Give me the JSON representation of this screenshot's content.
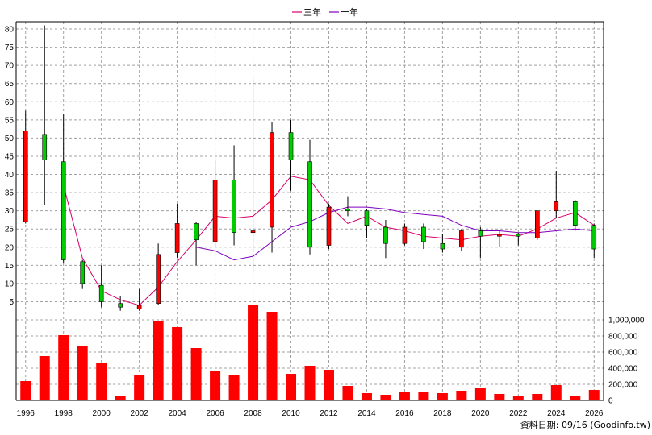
{
  "chart_data": {
    "type": "candlestick",
    "source_label": "資料日期: 09/16 (Goodinfo.tw)",
    "legend": {
      "placement": "top-center",
      "items": [
        {
          "name": "三年",
          "color": "#d8006c"
        },
        {
          "name": "十年",
          "color": "#8000c0"
        }
      ]
    },
    "colors": {
      "up": "#ff0000",
      "down": "#00cc00",
      "volume": "#ff0000"
    },
    "grid": true,
    "x_axis": {
      "min": 1995.5,
      "max": 2026.5,
      "tick_labels": [
        "1996",
        "1998",
        "2000",
        "2002",
        "2004",
        "2006",
        "2008",
        "2010",
        "2012",
        "2014",
        "2016",
        "2018",
        "2020",
        "2022",
        "2024",
        "2026"
      ]
    },
    "price_axis": {
      "range": [
        2,
        82
      ],
      "tick_labels": [
        "5",
        "10",
        "15",
        "20",
        "25",
        "30",
        "35",
        "40",
        "45",
        "50",
        "55",
        "60",
        "65",
        "70",
        "75",
        "80"
      ]
    },
    "volume_axis": {
      "range": [
        0,
        1200000
      ],
      "tick_labels": [
        "0",
        "200,000",
        "400,000",
        "600,000",
        "800,000",
        "1,000,000"
      ]
    },
    "candles": [
      {
        "year": 1996,
        "open": 27,
        "high": 57.5,
        "low": 26.5,
        "close": 52
      },
      {
        "year": 1997,
        "open": 51,
        "high": 81,
        "low": 31.5,
        "close": 44
      },
      {
        "year": 1998,
        "open": 43.5,
        "high": 56.5,
        "low": 15.5,
        "close": 16.5
      },
      {
        "year": 1999,
        "open": 16,
        "high": 16.5,
        "low": 8.5,
        "close": 10
      },
      {
        "year": 2000,
        "open": 9.5,
        "high": 15,
        "low": 3.5,
        "close": 5
      },
      {
        "year": 2001,
        "open": 4.5,
        "high": 6.5,
        "low": 2.5,
        "close": 3.5
      },
      {
        "year": 2002,
        "open": 3,
        "high": 8.5,
        "low": 2.5,
        "close": 4
      },
      {
        "year": 2003,
        "open": 4.5,
        "high": 21,
        "low": 4,
        "close": 18
      },
      {
        "year": 2004,
        "open": 18.5,
        "high": 32,
        "low": 17,
        "close": 26.5
      },
      {
        "year": 2005,
        "open": 26.5,
        "high": 27,
        "low": 15,
        "close": 22
      },
      {
        "year": 2006,
        "open": 21.5,
        "high": 44,
        "low": 20,
        "close": 38.5
      },
      {
        "year": 2007,
        "open": 38.5,
        "high": 48,
        "low": 20.5,
        "close": 24
      },
      {
        "year": 2008,
        "open": 24,
        "high": 66.5,
        "low": 13,
        "close": 24.5
      },
      {
        "year": 2009,
        "open": 25.5,
        "high": 54.5,
        "low": 18.5,
        "close": 51.5
      },
      {
        "year": 2010,
        "open": 51.5,
        "high": 55,
        "low": 35.5,
        "close": 44
      },
      {
        "year": 2011,
        "open": 43.5,
        "high": 49.5,
        "low": 18,
        "close": 20
      },
      {
        "year": 2012,
        "open": 20.5,
        "high": 32,
        "low": 19.5,
        "close": 31
      },
      {
        "year": 2013,
        "open": 30.5,
        "high": 34,
        "low": 28.5,
        "close": 30
      },
      {
        "year": 2014,
        "open": 30,
        "high": 30.5,
        "low": 22.5,
        "close": 26
      },
      {
        "year": 2015,
        "open": 25.5,
        "high": 27.5,
        "low": 17,
        "close": 21
      },
      {
        "year": 2016,
        "open": 21,
        "high": 26.5,
        "low": 20.5,
        "close": 25.5
      },
      {
        "year": 2017,
        "open": 25.5,
        "high": 26.5,
        "low": 19.5,
        "close": 21.5
      },
      {
        "year": 2018,
        "open": 21,
        "high": 23.5,
        "low": 18.5,
        "close": 19.5
      },
      {
        "year": 2019,
        "open": 20,
        "high": 25,
        "low": 19,
        "close": 24.5
      },
      {
        "year": 2020,
        "open": 24.5,
        "high": 25.5,
        "low": 17,
        "close": 23
      },
      {
        "year": 2021,
        "open": 23,
        "high": 24.5,
        "low": 20,
        "close": 23.5
      },
      {
        "year": 2022,
        "open": 23.5,
        "high": 24,
        "low": 20.5,
        "close": 23
      },
      {
        "year": 2023,
        "open": 22.5,
        "high": 30,
        "low": 22,
        "close": 30
      },
      {
        "year": 2024,
        "open": 30,
        "high": 41,
        "low": 28,
        "close": 32.5
      },
      {
        "year": 2025,
        "open": 32.5,
        "high": 33,
        "low": 24.5,
        "close": 26
      },
      {
        "year": 2026,
        "open": 26,
        "high": 26.5,
        "low": 17,
        "close": 19.5
      }
    ],
    "moving_averages": [
      {
        "name": "三年",
        "color": "#d8006c",
        "points": [
          [
            1998,
            37
          ],
          [
            1999,
            17
          ],
          [
            2000,
            8
          ],
          [
            2001,
            5.5
          ],
          [
            2002,
            4
          ],
          [
            2003,
            9
          ],
          [
            2004,
            16
          ],
          [
            2005,
            22
          ],
          [
            2006,
            28.5
          ],
          [
            2007,
            28
          ],
          [
            2008,
            28.5
          ],
          [
            2009,
            33
          ],
          [
            2010,
            39.5
          ],
          [
            2011,
            38.5
          ],
          [
            2012,
            31.5
          ],
          [
            2013,
            26.5
          ],
          [
            2014,
            28.5
          ],
          [
            2015,
            25.5
          ],
          [
            2016,
            24.5
          ],
          [
            2017,
            23
          ],
          [
            2018,
            22.5
          ],
          [
            2019,
            22
          ],
          [
            2020,
            23
          ],
          [
            2021,
            23.5
          ],
          [
            2022,
            23
          ],
          [
            2023,
            25
          ],
          [
            2024,
            28
          ],
          [
            2025,
            29.5
          ],
          [
            2026,
            26
          ]
        ]
      },
      {
        "name": "十年",
        "color": "#8000c0",
        "points": [
          [
            2005,
            20
          ],
          [
            2006,
            19
          ],
          [
            2007,
            16.5
          ],
          [
            2008,
            17.5
          ],
          [
            2009,
            21.5
          ],
          [
            2010,
            25.5
          ],
          [
            2011,
            27
          ],
          [
            2012,
            29.5
          ],
          [
            2013,
            31
          ],
          [
            2014,
            31
          ],
          [
            2015,
            30.5
          ],
          [
            2016,
            29.5
          ],
          [
            2017,
            29
          ],
          [
            2018,
            28.5
          ],
          [
            2019,
            26
          ],
          [
            2020,
            24.5
          ],
          [
            2021,
            24.5
          ],
          [
            2022,
            24
          ],
          [
            2023,
            24
          ],
          [
            2024,
            24.5
          ],
          [
            2025,
            25
          ],
          [
            2026,
            24.5
          ]
        ]
      }
    ],
    "volume": [
      {
        "year": 1996,
        "value": 240000
      },
      {
        "year": 1997,
        "value": 550000
      },
      {
        "year": 1998,
        "value": 810000
      },
      {
        "year": 1999,
        "value": 680000
      },
      {
        "year": 2000,
        "value": 460000
      },
      {
        "year": 2001,
        "value": 50000
      },
      {
        "year": 2002,
        "value": 320000
      },
      {
        "year": 2003,
        "value": 980000
      },
      {
        "year": 2004,
        "value": 910000
      },
      {
        "year": 2005,
        "value": 650000
      },
      {
        "year": 2006,
        "value": 360000
      },
      {
        "year": 2007,
        "value": 320000
      },
      {
        "year": 2008,
        "value": 1180000
      },
      {
        "year": 2009,
        "value": 1100000
      },
      {
        "year": 2010,
        "value": 330000
      },
      {
        "year": 2011,
        "value": 430000
      },
      {
        "year": 2012,
        "value": 380000
      },
      {
        "year": 2013,
        "value": 180000
      },
      {
        "year": 2014,
        "value": 90000
      },
      {
        "year": 2015,
        "value": 70000
      },
      {
        "year": 2016,
        "value": 110000
      },
      {
        "year": 2017,
        "value": 100000
      },
      {
        "year": 2018,
        "value": 90000
      },
      {
        "year": 2019,
        "value": 120000
      },
      {
        "year": 2020,
        "value": 150000
      },
      {
        "year": 2021,
        "value": 80000
      },
      {
        "year": 2022,
        "value": 60000
      },
      {
        "year": 2023,
        "value": 80000
      },
      {
        "year": 2024,
        "value": 190000
      },
      {
        "year": 2025,
        "value": 60000
      },
      {
        "year": 2026,
        "value": 130000
      }
    ]
  }
}
